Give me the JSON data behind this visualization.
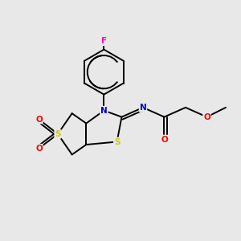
{
  "bg_color": "#e8e8e8",
  "atom_colors": {
    "C": "#000000",
    "N": "#0000cc",
    "S": "#cccc00",
    "O": "#ff0000",
    "F": "#ff00cc",
    "bond": "#000000"
  },
  "figsize": [
    3.0,
    3.0
  ],
  "dpi": 100
}
